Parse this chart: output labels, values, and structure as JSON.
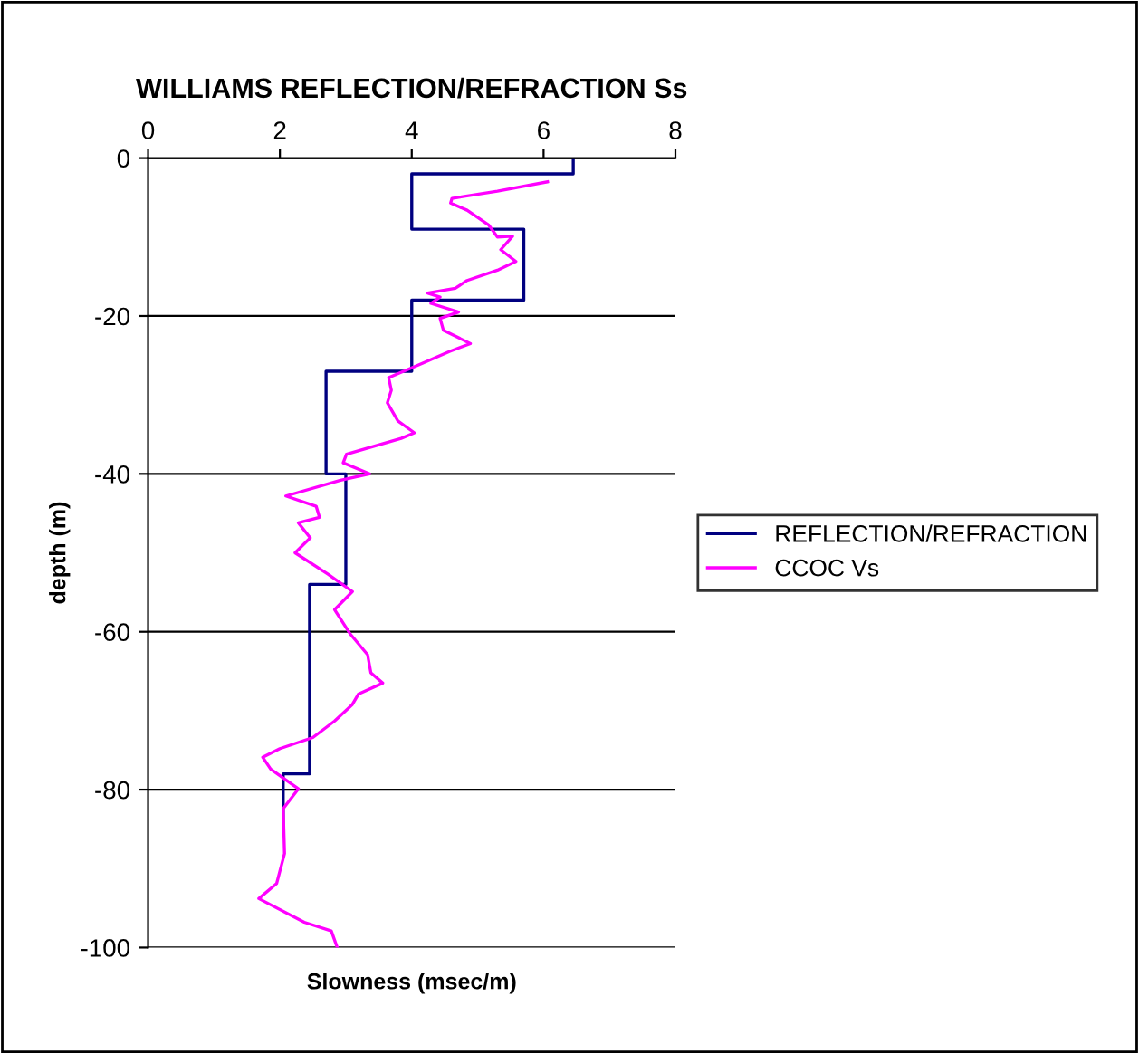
{
  "chart_data": {
    "type": "line",
    "title": "WILLIAMS REFLECTION/REFRACTION Ss",
    "xlabel": "Slowness (msec/m)",
    "ylabel": "depth (m)",
    "xlim": [
      0,
      8
    ],
    "xticks": [
      0,
      2,
      4,
      6,
      8
    ],
    "ylim": [
      -100,
      0
    ],
    "yticks": [
      -100,
      -80,
      -60,
      -40,
      -20,
      0
    ],
    "grid": "y",
    "legend": "right",
    "marker": "none",
    "line_style": "solid",
    "series": [
      {
        "name": "REFLECTION/REFRACTION",
        "color": "#000080",
        "x": [
          6.45,
          6.45,
          4,
          4,
          5.7,
          5.7,
          4,
          4,
          2.7,
          2.7,
          3.0,
          3.0,
          2.45,
          2.45,
          2.05,
          2.05
        ],
        "values": [
          0,
          -2,
          -2,
          -9,
          -9,
          -18,
          -18,
          -27,
          -27,
          -40,
          -40,
          -54,
          -54,
          -78,
          -78,
          -85
        ]
      },
      {
        "name": "CCOC Vs",
        "color": "#ff00ff",
        "x": [
          6.06,
          5.3,
          4.61,
          4.59,
          4.84,
          5.17,
          5.3,
          5.53,
          5.35,
          5.58,
          5.3,
          4.84,
          4.66,
          4.24,
          4.43,
          4.29,
          4.71,
          4.43,
          4.48,
          4.89,
          4.57,
          4.16,
          3.65,
          3.69,
          3.63,
          3.79,
          4.04,
          3.84,
          3.01,
          2.96,
          3.36,
          2.92,
          2.09,
          2.55,
          2.6,
          2.28,
          2.46,
          2.23,
          2.73,
          3.1,
          2.83,
          3.06,
          3.33,
          3.38,
          3.56,
          3.19,
          3.1,
          2.83,
          2.5,
          2.0,
          1.74,
          1.86,
          2.28,
          2.05,
          2.07,
          1.95,
          1.68,
          2.37,
          2.78,
          2.87
        ],
        "values": [
          -3.0,
          -4.2,
          -5.1,
          -5.7,
          -6.6,
          -8.5,
          -10.0,
          -9.9,
          -11.6,
          -13.1,
          -14.2,
          -15.5,
          -16.5,
          -17.1,
          -17.6,
          -18.4,
          -19.5,
          -20.3,
          -21.8,
          -23.5,
          -24.5,
          -26.0,
          -27.8,
          -29.4,
          -31.0,
          -33.3,
          -34.8,
          -35.5,
          -37.5,
          -38.6,
          -40.0,
          -40.8,
          -42.8,
          -44.1,
          -45.5,
          -46.2,
          -48.1,
          -50.0,
          -52.7,
          -54.9,
          -57.2,
          -60.2,
          -62.9,
          -65.2,
          -66.5,
          -67.9,
          -69.2,
          -71.3,
          -73.4,
          -74.8,
          -75.9,
          -77.4,
          -79.9,
          -82.4,
          -88.1,
          -91.9,
          -93.8,
          -96.8,
          -97.9,
          -100
        ]
      }
    ]
  }
}
